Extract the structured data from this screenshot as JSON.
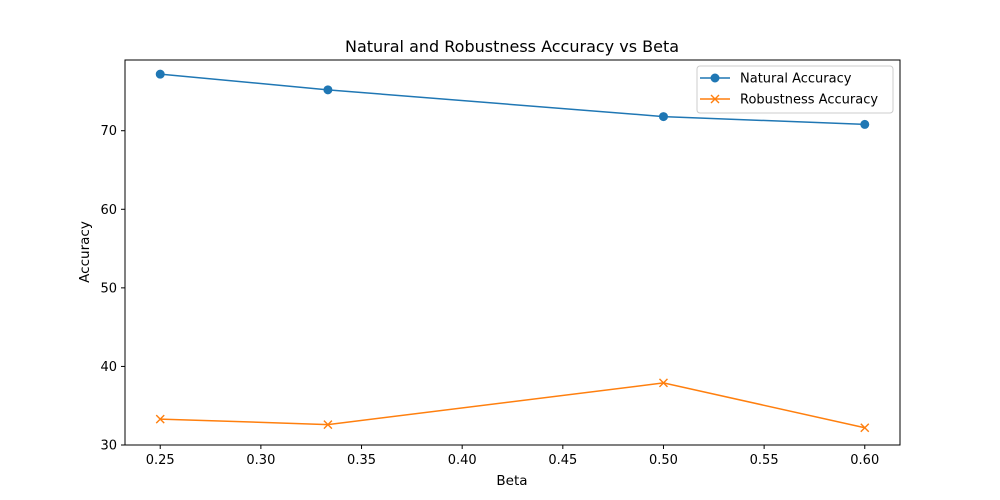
{
  "chart_data": {
    "type": "line",
    "title": "Natural and Robustness Accuracy vs Beta",
    "xlabel": "Beta",
    "ylabel": "Accuracy",
    "xlim": [
      0.2325,
      0.6175
    ],
    "ylim": [
      30,
      79
    ],
    "xticks": [
      0.25,
      0.3,
      0.35,
      0.4,
      0.45,
      0.5,
      0.55,
      0.6
    ],
    "xtick_labels": [
      "0.25",
      "0.30",
      "0.35",
      "0.40",
      "0.45",
      "0.50",
      "0.55",
      "0.60"
    ],
    "yticks": [
      30,
      40,
      50,
      60,
      70
    ],
    "ytick_labels": [
      "30",
      "40",
      "50",
      "60",
      "70"
    ],
    "grid": false,
    "legend_position": "top-right",
    "x": [
      0.25,
      0.3333,
      0.5,
      0.6
    ],
    "series": [
      {
        "name": "Natural Accuracy",
        "marker": "circle",
        "color": "#1f77b4",
        "values": [
          77.2,
          75.2,
          71.8,
          70.8
        ]
      },
      {
        "name": "Robustness Accuracy",
        "marker": "x",
        "color": "#ff7f0e",
        "values": [
          33.3,
          32.6,
          37.9,
          32.2
        ]
      }
    ]
  }
}
